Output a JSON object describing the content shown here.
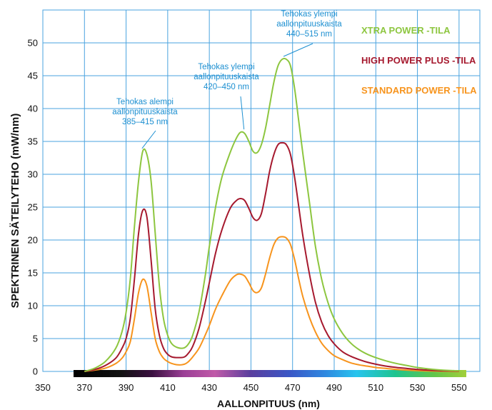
{
  "chart_data": {
    "type": "line",
    "title": "",
    "xlabel": "AALLONPITUUS (nm)",
    "ylabel": "SPEKTRINEN SÄTEILYTEHO (mW/nm)",
    "xlim": [
      350,
      560
    ],
    "ylim": [
      0,
      55
    ],
    "x_ticks": [
      350,
      370,
      390,
      410,
      430,
      450,
      470,
      490,
      510,
      530,
      550
    ],
    "y_ticks": [
      0,
      5,
      10,
      15,
      20,
      25,
      30,
      35,
      40,
      45,
      50
    ],
    "grid": true,
    "grid_color": "#4aa3df",
    "legend_position": "top-right",
    "colors": {
      "xtra": "#8dc63f",
      "high": "#a6192e",
      "standard": "#f7941d",
      "annotation": "#1c8fd1"
    },
    "series": [
      {
        "name": "XTRA POWER -TILA",
        "key": "xtra",
        "x": [
          370,
          375,
          380,
          385,
          388,
          390,
          392,
          394,
          396,
          398,
          400,
          402,
          404,
          406,
          408,
          410,
          412,
          415,
          418,
          420,
          422,
          425,
          428,
          430,
          433,
          436,
          440,
          443,
          445,
          447,
          449,
          451,
          453,
          455,
          457,
          459,
          461,
          463,
          465,
          467,
          469,
          471,
          473,
          475,
          478,
          481,
          484,
          487,
          490,
          494,
          498,
          502,
          506,
          510,
          515,
          520,
          525,
          530,
          535,
          540,
          545,
          550
        ],
        "values": [
          0,
          0.5,
          1.5,
          3.5,
          6,
          9,
          14,
          22,
          29,
          33.5,
          33,
          29,
          21,
          13,
          8,
          5.5,
          4.2,
          3.6,
          3.6,
          4.2,
          5.5,
          9,
          14.5,
          19,
          25,
          29.5,
          33.3,
          35.5,
          36.4,
          36.2,
          35,
          33.5,
          33.3,
          34.5,
          37,
          40.5,
          44,
          46.5,
          47.5,
          47.5,
          46.5,
          43,
          38,
          33,
          26,
          19,
          14,
          10.5,
          8,
          5.8,
          4.3,
          3.3,
          2.6,
          2.1,
          1.6,
          1.2,
          0.9,
          0.6,
          0.4,
          0.25,
          0.15,
          0.1
        ]
      },
      {
        "name": "HIGH POWER PLUS -TILA",
        "key": "high",
        "x": [
          370,
          375,
          380,
          385,
          388,
          390,
          392,
          394,
          396,
          398,
          400,
          402,
          404,
          406,
          408,
          410,
          412,
          415,
          418,
          420,
          422,
          425,
          428,
          430,
          433,
          436,
          440,
          443,
          445,
          447,
          449,
          451,
          453,
          455,
          457,
          459,
          461,
          463,
          465,
          467,
          469,
          471,
          473,
          475,
          478,
          481,
          484,
          487,
          490,
          494,
          498,
          502,
          506,
          510,
          515,
          520,
          525,
          530,
          535,
          540,
          545,
          550
        ],
        "values": [
          0,
          0.3,
          0.9,
          2,
          3.5,
          5,
          8,
          14,
          21,
          24.5,
          23.5,
          17,
          9.5,
          5.5,
          3.5,
          2.6,
          2.2,
          2.1,
          2.2,
          2.8,
          3.8,
          6.5,
          10.5,
          13.5,
          18,
          21.5,
          24.8,
          26,
          26.3,
          26,
          24.8,
          23.4,
          23,
          24,
          27,
          30.5,
          33,
          34.5,
          34.8,
          34.5,
          33,
          29.5,
          25,
          20.5,
          15,
          10.5,
          7.5,
          5.5,
          4.2,
          3,
          2.3,
          1.8,
          1.4,
          1.1,
          0.8,
          0.6,
          0.45,
          0.3,
          0.2,
          0.12,
          0.08,
          0.05
        ]
      },
      {
        "name": "STANDARD POWER -TILA",
        "key": "standard",
        "x": [
          370,
          375,
          380,
          385,
          388,
          390,
          392,
          394,
          396,
          398,
          400,
          402,
          404,
          406,
          408,
          410,
          412,
          415,
          418,
          420,
          422,
          425,
          428,
          430,
          433,
          436,
          440,
          443,
          445,
          447,
          449,
          451,
          453,
          455,
          457,
          459,
          461,
          463,
          465,
          467,
          469,
          471,
          473,
          475,
          478,
          481,
          484,
          487,
          490,
          494,
          498,
          502,
          506,
          510,
          515,
          520,
          525,
          530,
          535,
          540,
          545,
          550
        ],
        "values": [
          0,
          0.2,
          0.5,
          1.2,
          2,
          3,
          4.5,
          8,
          12,
          14,
          13,
          9,
          5,
          3,
          2,
          1.5,
          1.2,
          1,
          1.1,
          1.5,
          2.2,
          3.5,
          5.5,
          7,
          9.5,
          11.5,
          13.8,
          14.7,
          14.8,
          14.5,
          13.5,
          12.3,
          12,
          12.7,
          14.8,
          17.3,
          19.3,
          20.3,
          20.5,
          20.3,
          19.3,
          17,
          14,
          11.3,
          8.3,
          6,
          4.3,
          3.2,
          2.4,
          1.8,
          1.3,
          1,
          0.8,
          0.6,
          0.45,
          0.3,
          0.2,
          0.12,
          0.08,
          0.05,
          0.03,
          0.02
        ]
      }
    ],
    "annotations": [
      {
        "lines": [
          "Tehokas alempi",
          "aallonpituuskaista",
          "385–415 nm"
        ],
        "point": [
          398,
          33.5
        ]
      },
      {
        "lines": [
          "Tehokas ylempi",
          "aallonpituuskaista",
          "420–450 nm"
        ],
        "point": [
          447,
          36.4
        ]
      },
      {
        "lines": [
          "Tehokas ylempi",
          "aallonpituuskaista",
          "440–515 nm"
        ],
        "point": [
          466,
          47.5
        ]
      }
    ]
  }
}
